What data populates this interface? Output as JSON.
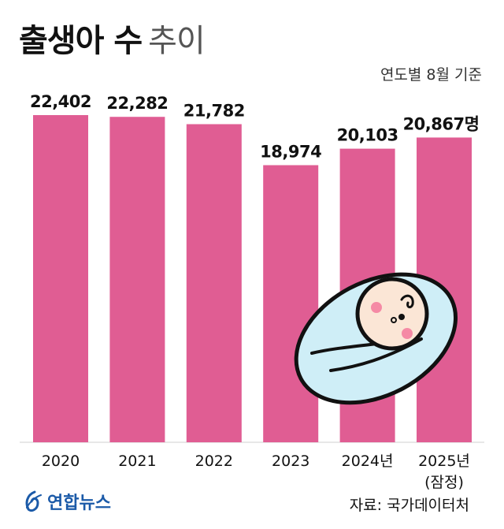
{
  "header": {
    "title_main": "출생아 수",
    "title_sub": "추이",
    "subtitle": "연도별 8월 기준"
  },
  "footer": {
    "logo": "연합뉴스",
    "source": "자료: 국가데이터처"
  },
  "colors": {
    "bar": "#e05d93",
    "grid": "#cfcfcf"
  },
  "chart_data": {
    "type": "bar",
    "categories": [
      "2020",
      "2021",
      "2022",
      "2023",
      "2024년",
      "2025년"
    ],
    "category_notes": [
      "",
      "",
      "",
      "",
      "",
      "(잠정)"
    ],
    "values": [
      22402,
      22282,
      21782,
      18974,
      20103,
      20867
    ],
    "value_labels": [
      "22,402",
      "22,282",
      "21,782",
      "18,974",
      "20,103",
      "20,867명"
    ],
    "ylim": [
      0,
      22402
    ],
    "grid": false
  }
}
